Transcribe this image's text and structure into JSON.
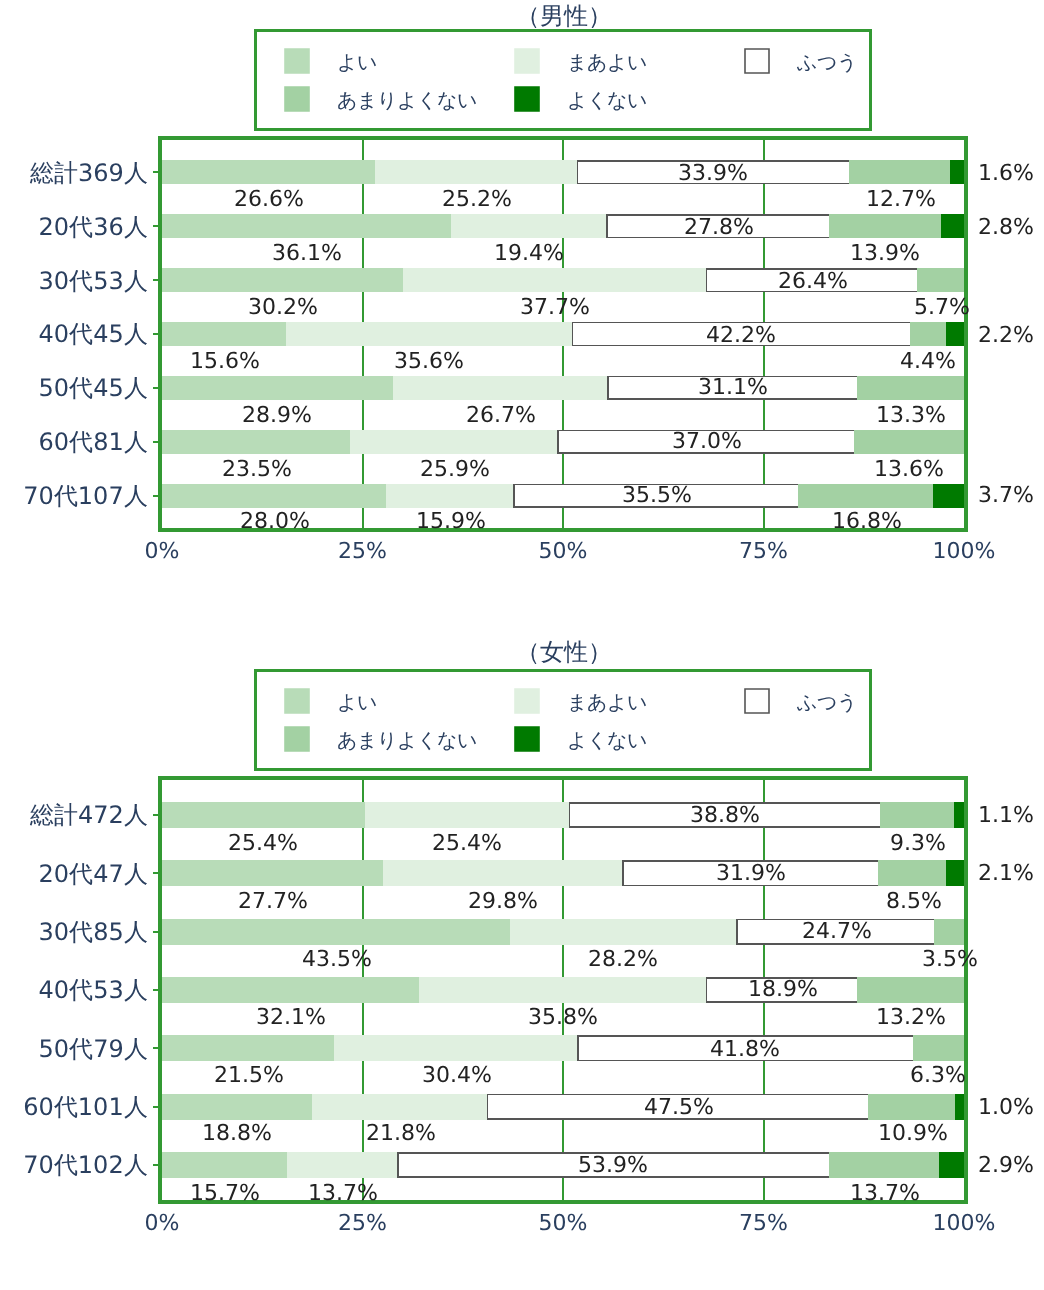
{
  "chart_data": [
    {
      "type": "bar",
      "orientation": "horizontal",
      "stacked": true,
      "title": "（男性）",
      "categories": [
        "総計369人",
        "20代36人",
        "30代53人",
        "40代45人",
        "50代45人",
        "60代81人",
        "70代107人"
      ],
      "series": [
        {
          "name": "よい",
          "color": "#b8dcb8",
          "values": [
            26.6,
            36.1,
            30.2,
            15.6,
            28.9,
            23.5,
            28.0
          ],
          "value_labels": [
            "26.6%",
            "36.1%",
            "30.2%",
            "15.6%",
            "28.9%",
            "23.5%",
            "28.0%"
          ]
        },
        {
          "name": "まあよい",
          "color": "#e0f0e0",
          "values": [
            25.2,
            19.4,
            37.7,
            35.6,
            26.7,
            25.9,
            15.9
          ],
          "value_labels": [
            "25.2%",
            "19.4%",
            "37.7%",
            "35.6%",
            "26.7%",
            "25.9%",
            "15.9%"
          ]
        },
        {
          "name": "ふつう",
          "color": "#ffffff",
          "values": [
            33.9,
            27.8,
            26.4,
            42.2,
            31.1,
            37.0,
            35.5
          ],
          "value_labels": [
            "33.9%",
            "27.8%",
            "26.4%",
            "42.2%",
            "31.1%",
            "37.0%",
            "35.5%"
          ]
        },
        {
          "name": "あまりよくない",
          "color": "#a3d1a3",
          "values": [
            12.7,
            13.9,
            5.7,
            4.4,
            13.3,
            13.6,
            16.8
          ],
          "value_labels": [
            "12.7%",
            "13.9%",
            "5.7%",
            "4.4%",
            "13.3%",
            "13.6%",
            "16.8%"
          ]
        },
        {
          "name": "よくない",
          "color": "#007a00",
          "values": [
            1.6,
            2.8,
            null,
            2.2,
            null,
            null,
            3.7
          ],
          "value_labels": [
            "1.6%",
            "2.8%",
            null,
            "2.2%",
            null,
            null,
            "3.7%"
          ]
        }
      ],
      "xlim": [
        0,
        100
      ],
      "xticks": [
        {
          "value": 0,
          "label": "0%"
        },
        {
          "value": 25,
          "label": "25%"
        },
        {
          "value": 50,
          "label": "50%"
        },
        {
          "value": 75,
          "label": "75%"
        },
        {
          "value": 100,
          "label": "100%"
        }
      ],
      "grid": "x",
      "legend": "top"
    },
    {
      "type": "bar",
      "orientation": "horizontal",
      "stacked": true,
      "title": "（女性）",
      "categories": [
        "総計472人",
        "20代47人",
        "30代85人",
        "40代53人",
        "50代79人",
        "60代101人",
        "70代102人"
      ],
      "series": [
        {
          "name": "よい",
          "color": "#b8dcb8",
          "values": [
            25.4,
            27.7,
            43.5,
            32.1,
            21.5,
            18.8,
            15.7
          ],
          "value_labels": [
            "25.4%",
            "27.7%",
            "43.5%",
            "32.1%",
            "21.5%",
            "18.8%",
            "15.7%"
          ]
        },
        {
          "name": "まあよい",
          "color": "#e0f0e0",
          "values": [
            25.4,
            29.8,
            28.2,
            35.8,
            30.4,
            21.8,
            13.7
          ],
          "value_labels": [
            "25.4%",
            "29.8%",
            "28.2%",
            "35.8%",
            "30.4%",
            "21.8%",
            "13.7%"
          ]
        },
        {
          "name": "ふつう",
          "color": "#ffffff",
          "values": [
            38.8,
            31.9,
            24.7,
            18.9,
            41.8,
            47.5,
            53.9
          ],
          "value_labels": [
            "38.8%",
            "31.9%",
            "24.7%",
            "18.9%",
            "41.8%",
            "47.5%",
            "53.9%"
          ]
        },
        {
          "name": "あまりよくない",
          "color": "#a3d1a3",
          "values": [
            9.3,
            8.5,
            3.5,
            13.2,
            6.3,
            10.9,
            13.7
          ],
          "value_labels": [
            "9.3%",
            "8.5%",
            "3.5%",
            "13.2%",
            "6.3%",
            "10.9%",
            "13.7%"
          ]
        },
        {
          "name": "よくない",
          "color": "#007a00",
          "values": [
            1.1,
            2.1,
            null,
            null,
            null,
            1.0,
            2.9
          ],
          "value_labels": [
            "1.1%",
            "2.1%",
            null,
            null,
            null,
            "1.0%",
            "2.9%"
          ]
        }
      ],
      "xlim": [
        0,
        100
      ],
      "xticks": [
        {
          "value": 0,
          "label": "0%"
        },
        {
          "value": 25,
          "label": "25%"
        },
        {
          "value": 50,
          "label": "50%"
        },
        {
          "value": 75,
          "label": "75%"
        },
        {
          "value": 100,
          "label": "100%"
        }
      ],
      "grid": "x",
      "legend": "top"
    }
  ]
}
